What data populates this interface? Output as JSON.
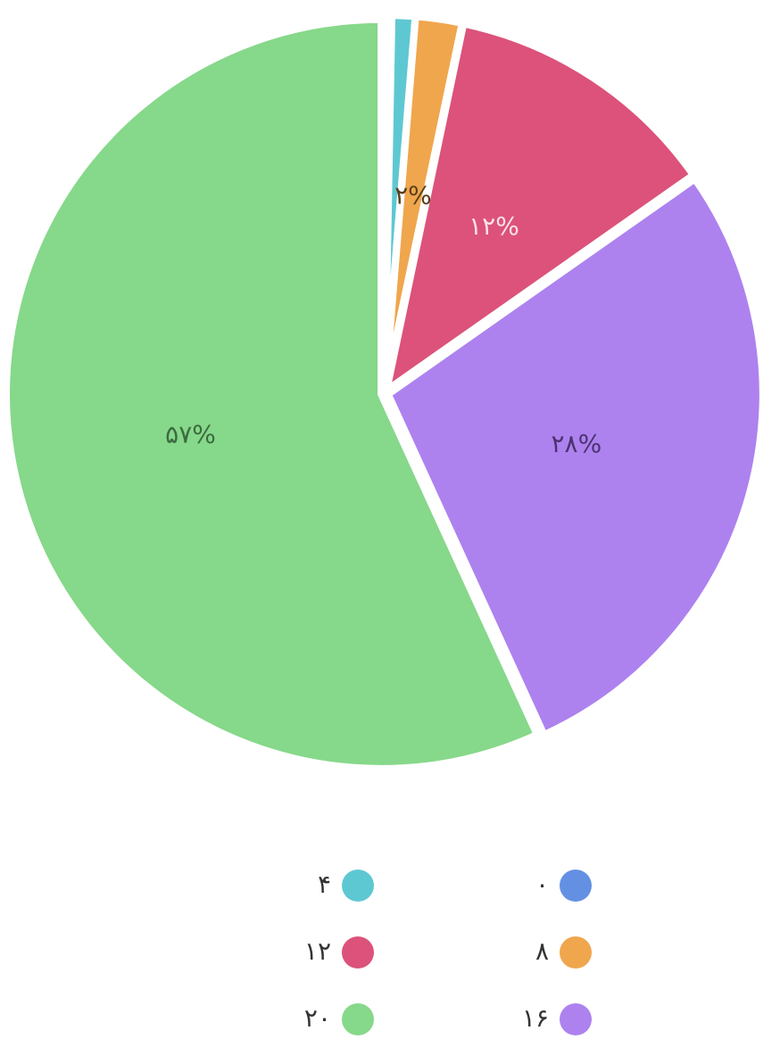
{
  "chart_data": {
    "type": "pie",
    "categories": [
      "۰",
      "۴",
      "۸",
      "۱۲",
      "۱۶",
      "۲۰"
    ],
    "values": [
      0.3,
      1,
      2,
      12,
      28,
      57
    ],
    "value_labels": [
      null,
      null,
      "۲%",
      "۱۲%",
      "۲۸%",
      "۵۷%"
    ],
    "colors": [
      "#6490e4",
      "#5ec8d2",
      "#f0a64d",
      "#dc527a",
      "#ad82ef",
      "#86d88a"
    ],
    "label_colors": [
      null,
      null,
      "#5a3f1c",
      "#fbe3ea",
      "#4c3270",
      "#3c6a40"
    ],
    "legend": "bottom"
  }
}
